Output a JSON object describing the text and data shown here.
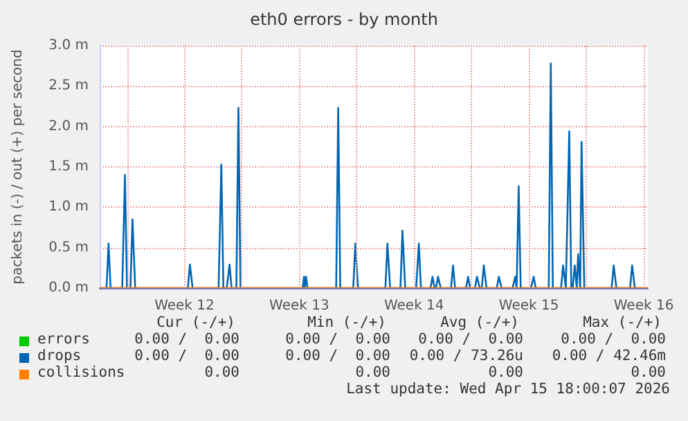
{
  "chart_data": {
    "type": "line",
    "title": "eth0 errors - by month",
    "ylabel": "packets in (-) / out (+) per second",
    "xlim": [
      "2026-03-13T08:00",
      "2026-04-15T18:00"
    ],
    "xticks": [
      {
        "value": "2026-03-15",
        "label": null
      },
      {
        "value": "2026-03-18T12:00",
        "label": "Week 12"
      },
      {
        "value": "2026-03-22",
        "label": null
      },
      {
        "value": "2026-03-25T12:00",
        "label": "Week 13"
      },
      {
        "value": "2026-03-29",
        "label": null
      },
      {
        "value": "2026-04-01T12:00",
        "label": "Week 14"
      },
      {
        "value": "2026-04-05",
        "label": null
      },
      {
        "value": "2026-04-08T12:00",
        "label": "Week 15"
      },
      {
        "value": "2026-04-12",
        "label": null
      },
      {
        "value": "2026-04-15T12:00",
        "label": "Week 16"
      }
    ],
    "ylim": [
      0,
      3.0
    ],
    "yticks": [
      {
        "value": 0,
        "label": "0.0 m"
      },
      {
        "value": 0.5,
        "label": "0.5 m"
      },
      {
        "value": 1.0,
        "label": "1.0 m"
      },
      {
        "value": 1.5,
        "label": "1.5 m"
      },
      {
        "value": 2.0,
        "label": "2.0 m"
      },
      {
        "value": 2.5,
        "label": "2.5 m"
      },
      {
        "value": 3.0,
        "label": "3.0 m"
      }
    ],
    "grid": true,
    "legend": "bottom",
    "marker": "none",
    "series": [
      {
        "name": "errors",
        "color": "#00cc00"
      },
      {
        "name": "drops",
        "color": "#0066b3",
        "x": [
          "2026-03-13T08:00",
          "2026-03-13T18:00",
          "2026-03-13T21:00",
          "2026-03-14T00:00",
          "2026-03-14T17:00",
          "2026-03-14T21:00",
          "2026-03-15T00:00",
          "2026-03-15T05:00",
          "2026-03-15T08:00",
          "2026-03-15T12:00",
          "2026-03-18T17:00",
          "2026-03-18T20:00",
          "2026-03-19T00:00",
          "2026-03-20T14:00",
          "2026-03-20T18:00",
          "2026-03-20T21:00",
          "2026-03-21T02:00",
          "2026-03-21T06:00",
          "2026-03-21T09:00",
          "2026-03-21T16:00",
          "2026-03-21T19:00",
          "2026-03-21T22:00",
          "2026-03-25T17:00",
          "2026-03-25T19:00",
          "2026-03-25T20:00",
          "2026-03-25T22:00",
          "2026-03-26T00:00",
          "2026-03-27T18:00",
          "2026-03-27T21:00",
          "2026-03-28T00:00",
          "2026-03-28T19:00",
          "2026-03-28T22:00",
          "2026-03-29T02:00",
          "2026-03-30T18:00",
          "2026-03-30T21:00",
          "2026-03-31T01:00",
          "2026-03-31T16:00",
          "2026-03-31T19:00",
          "2026-03-31T23:00",
          "2026-04-01T15:00",
          "2026-04-01T19:00",
          "2026-04-01T22:00",
          "2026-04-02T12:00",
          "2026-04-02T15:00",
          "2026-04-02T18:00",
          "2026-04-02T20:00",
          "2026-04-02T23:00",
          "2026-04-03T03:00",
          "2026-04-03T18:00",
          "2026-04-03T21:00",
          "2026-04-04T00:00",
          "2026-04-04T16:00",
          "2026-04-04T19:00",
          "2026-04-04T22:00",
          "2026-04-05T05:00",
          "2026-04-05T08:00",
          "2026-04-05T12:00",
          "2026-04-05T15:00",
          "2026-04-05T18:00",
          "2026-04-05T22:00",
          "2026-04-06T13:00",
          "2026-04-06T16:00",
          "2026-04-06T20:00",
          "2026-04-07T12:00",
          "2026-04-07T16:00",
          "2026-04-07T18:00",
          "2026-04-07T21:00",
          "2026-04-08T00:00",
          "2026-04-08T15:00",
          "2026-04-08T19:00",
          "2026-04-08T22:00",
          "2026-04-09T17:00",
          "2026-04-09T20:00",
          "2026-04-09T23:00",
          "2026-04-10T11:00",
          "2026-04-10T14:00",
          "2026-04-10T18:00",
          "2026-04-10T19:00",
          "2026-04-10T23:00",
          "2026-04-11T02:00",
          "2026-04-11T04:00",
          "2026-04-11T07:00",
          "2026-04-11T10:00",
          "2026-04-11T12:00",
          "2026-04-11T15:00",
          "2026-04-11T17:00",
          "2026-04-11T21:00",
          "2026-04-13T13:00",
          "2026-04-13T16:00",
          "2026-04-13T20:00",
          "2026-04-14T16:00",
          "2026-04-14T19:00",
          "2026-04-14T23:00",
          "2026-04-15T18:00"
        ],
        "values": [
          0,
          0,
          0.55,
          0,
          0,
          1.4,
          0,
          0,
          0.85,
          0,
          0,
          0.29,
          0,
          0,
          1.53,
          0,
          0,
          0.29,
          0,
          0,
          2.23,
          0,
          0,
          0.14,
          0,
          0.14,
          0,
          0,
          2.23,
          0,
          0,
          0.55,
          0,
          0,
          0.55,
          0,
          0,
          0.71,
          0,
          0,
          0.55,
          0,
          0,
          0.14,
          0,
          0,
          0.14,
          0,
          0,
          0.28,
          0,
          0,
          0.14,
          0,
          0,
          0.14,
          0,
          0,
          0.28,
          0,
          0,
          0.14,
          0,
          0,
          0.14,
          0,
          1.26,
          0,
          0,
          0.14,
          0,
          0,
          2.78,
          0,
          0,
          0.28,
          0,
          0,
          1.94,
          0,
          0,
          0.28,
          0,
          0.42,
          0,
          1.81,
          0,
          0,
          0.28,
          0,
          0,
          0.28,
          0,
          0
        ]
      },
      {
        "name": "collisions",
        "color": "#ff8000",
        "x": [
          "2026-03-13T08:00",
          "2026-04-15T18:00"
        ],
        "values": [
          0,
          0
        ]
      }
    ],
    "annotations": [
      "Cur (-/+)",
      "Min (-/+)",
      "Avg (-/+)",
      "Max (-/+)",
      "0.00 /  0.00",
      "0.00 /  0.00",
      "0.00 /  0.00",
      "0.00 /  0.00",
      "0.00 /  0.00",
      "0.00 /  0.00",
      "0.00 / 73.26u",
      "0.00 / 42.46m",
      "0.00",
      "0.00",
      "0.00",
      "0.00",
      "Last update: Wed Apr 15 18:00:07 2026"
    ]
  }
}
